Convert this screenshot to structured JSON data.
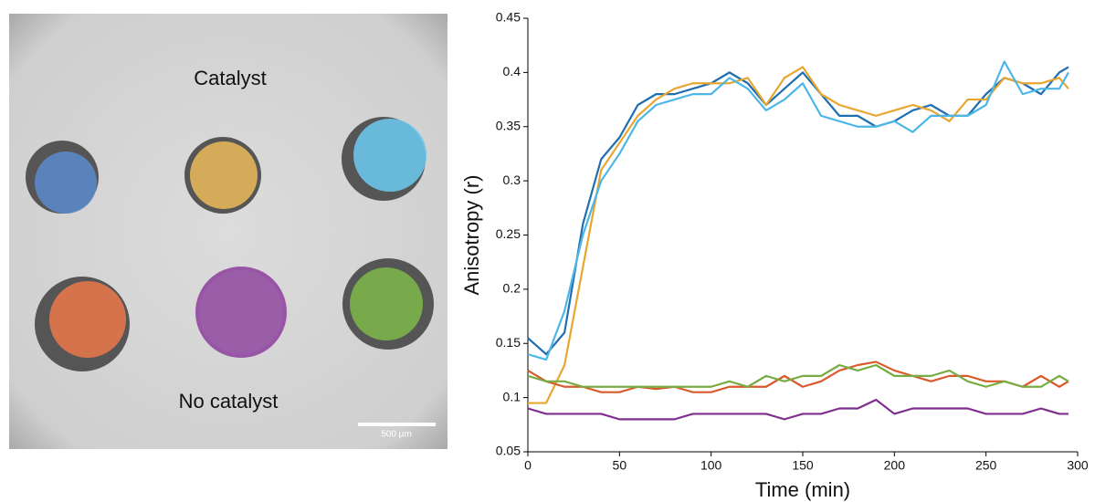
{
  "image": {
    "top_label": "Catalyst",
    "bottom_label": "No catalyst",
    "scale_bar": "500 µm"
  },
  "chart_data": {
    "type": "line",
    "xlabel": "Time (min)",
    "ylabel": "Anisotropy (r)",
    "x": [
      0,
      10,
      20,
      30,
      40,
      50,
      60,
      70,
      80,
      90,
      100,
      110,
      120,
      130,
      140,
      150,
      160,
      170,
      180,
      190,
      200,
      210,
      220,
      230,
      240,
      250,
      260,
      270,
      280,
      290,
      295
    ],
    "xlim": [
      0,
      300
    ],
    "xticks": [
      0,
      50,
      100,
      150,
      200,
      250,
      300
    ],
    "ylim": [
      0.05,
      0.45
    ],
    "yticks": [
      0.05,
      0.1,
      0.15,
      0.2,
      0.25,
      0.3,
      0.35,
      0.4,
      0.45
    ],
    "grid": false,
    "series": [
      {
        "color": "#1f6eb0",
        "values": [
          0.155,
          0.14,
          0.16,
          0.26,
          0.32,
          0.34,
          0.37,
          0.38,
          0.38,
          0.385,
          0.39,
          0.4,
          0.39,
          0.37,
          0.385,
          0.4,
          0.38,
          0.36,
          0.36,
          0.35,
          0.355,
          0.365,
          0.37,
          0.36,
          0.36,
          0.38,
          0.395,
          0.39,
          0.38,
          0.4,
          0.405
        ]
      },
      {
        "color": "#e8a630",
        "values": [
          0.095,
          0.095,
          0.13,
          0.22,
          0.31,
          0.335,
          0.36,
          0.375,
          0.385,
          0.39,
          0.39,
          0.39,
          0.395,
          0.37,
          0.395,
          0.405,
          0.38,
          0.37,
          0.365,
          0.36,
          0.365,
          0.37,
          0.365,
          0.355,
          0.375,
          0.375,
          0.395,
          0.39,
          0.39,
          0.395,
          0.385
        ]
      },
      {
        "color": "#4cb6e6",
        "values": [
          0.14,
          0.135,
          0.18,
          0.25,
          0.3,
          0.325,
          0.355,
          0.37,
          0.375,
          0.38,
          0.38,
          0.395,
          0.385,
          0.365,
          0.375,
          0.39,
          0.36,
          0.355,
          0.35,
          0.35,
          0.355,
          0.345,
          0.36,
          0.36,
          0.36,
          0.37,
          0.41,
          0.38,
          0.385,
          0.385,
          0.4
        ]
      },
      {
        "color": "#d95a2b",
        "values": [
          0.125,
          0.115,
          0.11,
          0.11,
          0.105,
          0.105,
          0.11,
          0.108,
          0.11,
          0.105,
          0.105,
          0.11,
          0.11,
          0.11,
          0.12,
          0.11,
          0.115,
          0.125,
          0.13,
          0.133,
          0.125,
          0.12,
          0.115,
          0.12,
          0.12,
          0.115,
          0.115,
          0.11,
          0.12,
          0.11,
          0.115
        ]
      },
      {
        "color": "#77ac43",
        "values": [
          0.12,
          0.115,
          0.115,
          0.11,
          0.11,
          0.11,
          0.11,
          0.11,
          0.11,
          0.11,
          0.11,
          0.115,
          0.11,
          0.12,
          0.115,
          0.12,
          0.12,
          0.13,
          0.125,
          0.13,
          0.12,
          0.12,
          0.12,
          0.125,
          0.115,
          0.11,
          0.115,
          0.11,
          0.11,
          0.12,
          0.115
        ]
      },
      {
        "color": "#7e2f8e",
        "values": [
          0.09,
          0.085,
          0.085,
          0.085,
          0.085,
          0.08,
          0.08,
          0.08,
          0.08,
          0.085,
          0.085,
          0.085,
          0.085,
          0.085,
          0.08,
          0.085,
          0.085,
          0.09,
          0.09,
          0.098,
          0.085,
          0.09,
          0.09,
          0.09,
          0.09,
          0.085,
          0.085,
          0.085,
          0.09,
          0.085,
          0.085
        ]
      }
    ]
  }
}
